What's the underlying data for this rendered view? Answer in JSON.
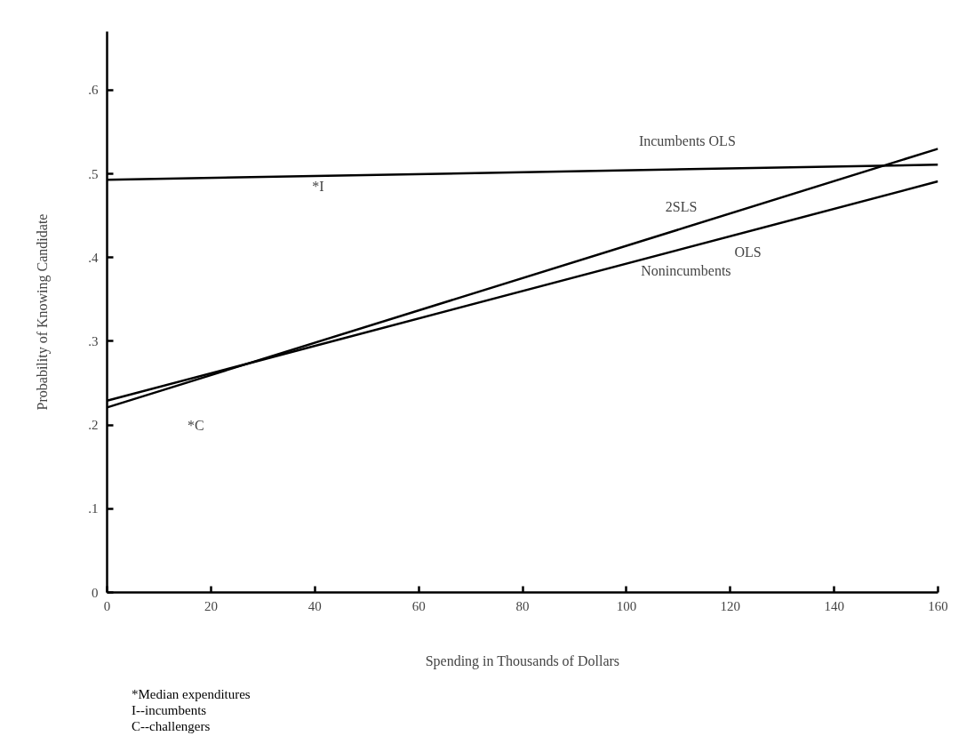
{
  "chart_data": {
    "type": "line",
    "xlabel": "Spending in Thousands of Dollars",
    "ylabel": "Probability of Knowing Candidate",
    "x": [
      0,
      160
    ],
    "series": [
      {
        "name": "Incumbents OLS",
        "color": "#000000",
        "values": [
          0.493,
          0.511
        ]
      },
      {
        "name": "2SLS",
        "color": "#000000",
        "values": [
          0.221,
          0.53
        ]
      },
      {
        "name": "OLS Nonincumbents",
        "color": "#000000",
        "values": [
          0.229,
          0.491
        ]
      }
    ],
    "xlim": [
      0,
      160
    ],
    "ylim": [
      0,
      0.67
    ],
    "xticks": [
      0,
      20,
      40,
      60,
      80,
      100,
      120,
      140,
      160
    ],
    "yticks": [
      {
        "value": 0,
        "label": "0"
      },
      {
        "value": 0.1,
        "label": ".1"
      },
      {
        "value": 0.2,
        "label": ".2"
      },
      {
        "value": 0.3,
        "label": ".3"
      },
      {
        "value": 0.4,
        "label": ".4"
      },
      {
        "value": 0.5,
        "label": ".5"
      },
      {
        "value": 0.6,
        "label": ".6"
      }
    ],
    "annotations": [
      "*I",
      "*C",
      "*Median expenditures",
      "I--incumbents",
      "C--challengers"
    ],
    "grid": false,
    "marker": "none",
    "line_style": "solid"
  }
}
